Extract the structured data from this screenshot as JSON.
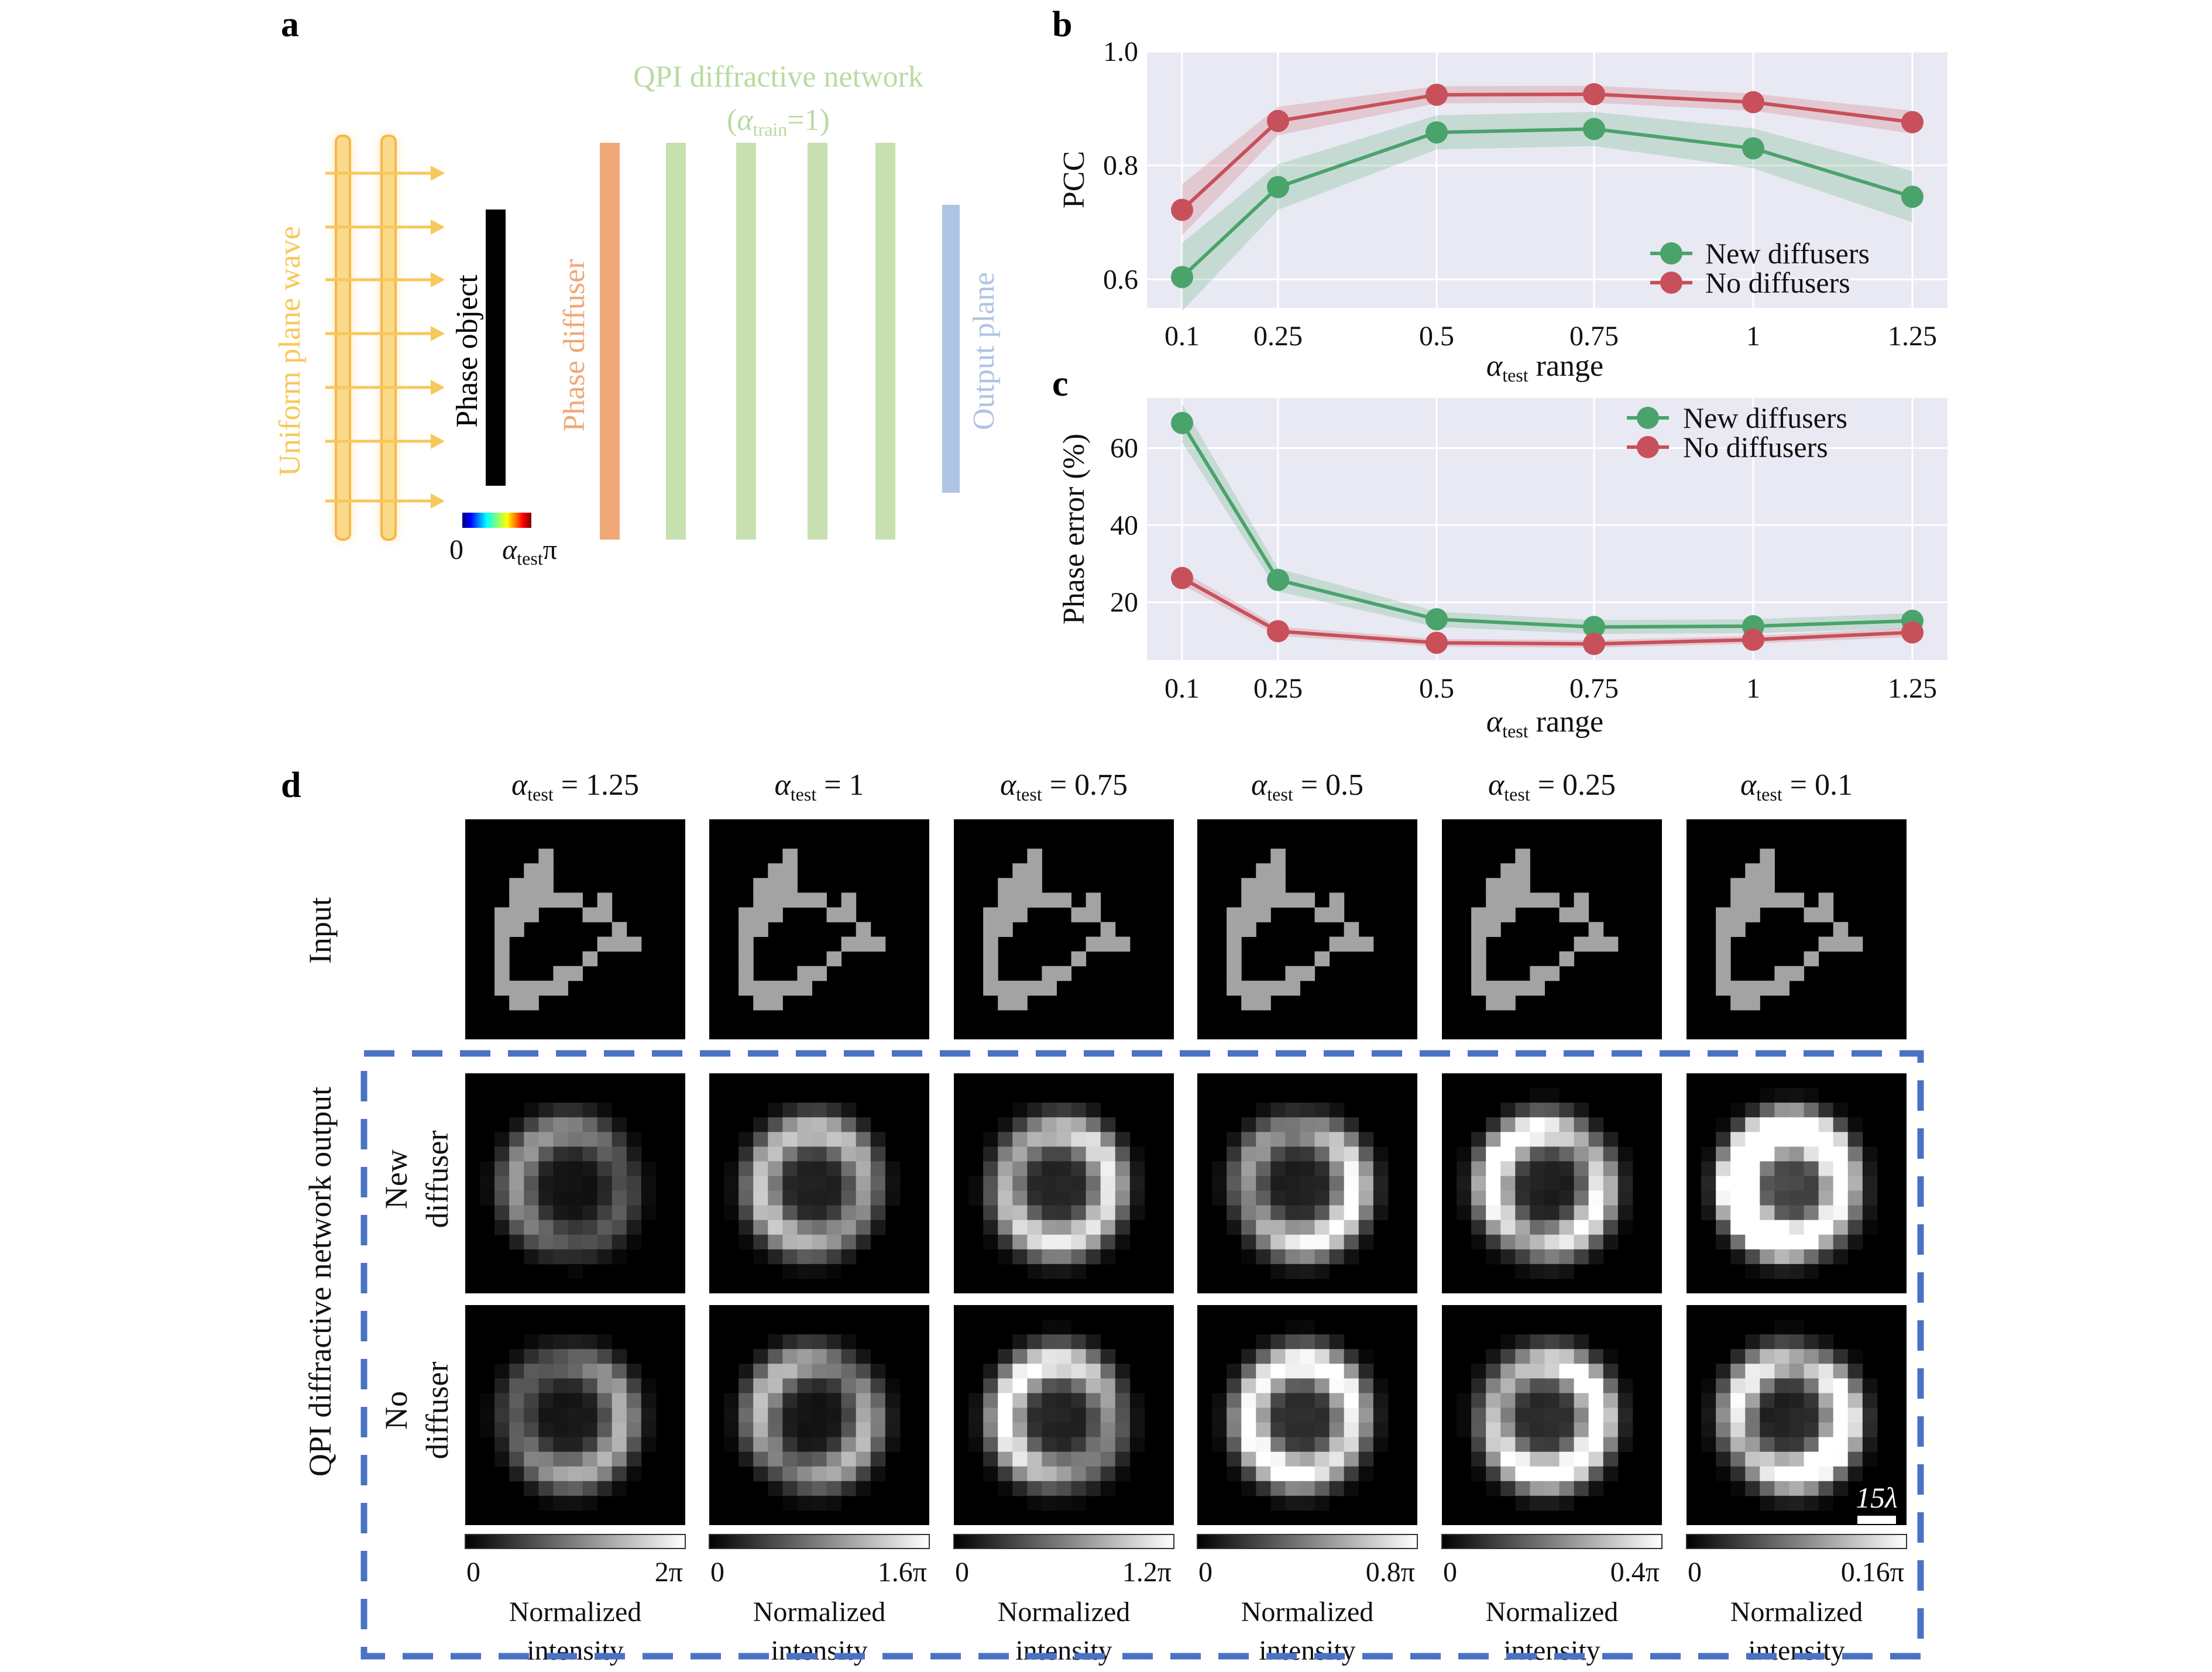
{
  "panels": {
    "a": {
      "letter": "a",
      "network_title": "QPI diffractive network",
      "network_subtitle_pre": "(",
      "alpha": "α",
      "train_sub": "train",
      "network_subtitle_post": "=1)",
      "labels": {
        "plane_wave": "Uniform plane wave",
        "phase_object": "Phase object",
        "phase_diffuser": "Phase diffuser",
        "output_plane": "Output plane"
      },
      "colorbar": {
        "min": "0",
        "max_sub": "test",
        "max_suffix": "π"
      },
      "colors": {
        "plane_wave": "#f7c85a",
        "diffuser": "#f0a878",
        "layers": "#c6e0b0",
        "output": "#aec4e4",
        "title": "#b8dba0"
      }
    },
    "b": {
      "letter": "b"
    },
    "c": {
      "letter": "c"
    },
    "d": {
      "letter": "d",
      "alpha_sub": "test",
      "columns": [
        {
          "label": " = 1.25",
          "cb_max": "2π"
        },
        {
          "label": " = 1",
          "cb_max": "1.6π"
        },
        {
          "label": " = 0.75",
          "cb_max": "1.2π"
        },
        {
          "label": " = 0.5",
          "cb_max": "0.8π"
        },
        {
          "label": " = 0.25",
          "cb_max": "0.4π"
        },
        {
          "label": " = 0.1",
          "cb_max": "0.16π"
        }
      ],
      "output_brightness": [
        0.48,
        0.62,
        0.72,
        0.82,
        1.05,
        1.5
      ],
      "nodiff_brightness": [
        0.55,
        0.7,
        0.8,
        0.85,
        0.9,
        1.1
      ],
      "row_input": "Input",
      "row_new_1": "New",
      "row_new_2": "diffuser",
      "row_no_1": "No",
      "row_no_2": "diffuser",
      "group_label": "QPI diffractive network output",
      "cb_min": "0",
      "cb_label_1": "Normalized",
      "cb_label_2": "intensity",
      "scale_bar": "15λ",
      "dash_color": "#4a72c4"
    }
  },
  "chart_data": [
    {
      "type": "line",
      "panel": "b",
      "categories": [
        "0.1",
        "0.25",
        "0.5",
        "0.75",
        "1",
        "1.25"
      ],
      "xlabel_alpha": "α",
      "xlabel_sub": "test",
      "xlabel_post": " range",
      "ylabel": "PCC",
      "ylim": [
        0.55,
        1.0
      ],
      "yticks": [
        "0.6",
        "0.8",
        "1.0"
      ],
      "grid": true,
      "legend": "bottom-right",
      "series": [
        {
          "name": "New diffusers",
          "color": "#4aa36b",
          "values": [
            0.604,
            0.762,
            0.858,
            0.864,
            0.83,
            0.745
          ],
          "band": [
            0.06,
            0.04,
            0.03,
            0.03,
            0.035,
            0.045
          ]
        },
        {
          "name": "No diffusers",
          "color": "#c8505a",
          "values": [
            0.722,
            0.878,
            0.924,
            0.925,
            0.911,
            0.876
          ],
          "band": [
            0.045,
            0.025,
            0.015,
            0.015,
            0.015,
            0.02
          ]
        }
      ]
    },
    {
      "type": "line",
      "panel": "c",
      "categories": [
        "0.1",
        "0.25",
        "0.5",
        "0.75",
        "1",
        "1.25"
      ],
      "xlabel_alpha": "α",
      "xlabel_sub": "test",
      "xlabel_post": " range",
      "ylabel": "Phase error (%)",
      "ylim": [
        5,
        73
      ],
      "yticks": [
        "20",
        "40",
        "60"
      ],
      "grid": true,
      "legend": "top-right",
      "series": [
        {
          "name": "New diffusers",
          "color": "#4aa36b",
          "values": [
            66.5,
            25.8,
            15.6,
            13.6,
            13.8,
            15.2
          ],
          "band": [
            5,
            3,
            2,
            1.8,
            1.8,
            2
          ]
        },
        {
          "name": "No diffusers",
          "color": "#c8505a",
          "values": [
            26.3,
            12.5,
            9.5,
            9.2,
            10.3,
            12.2
          ],
          "band": [
            1.8,
            1.2,
            1,
            1,
            1,
            1.2
          ]
        }
      ]
    }
  ]
}
